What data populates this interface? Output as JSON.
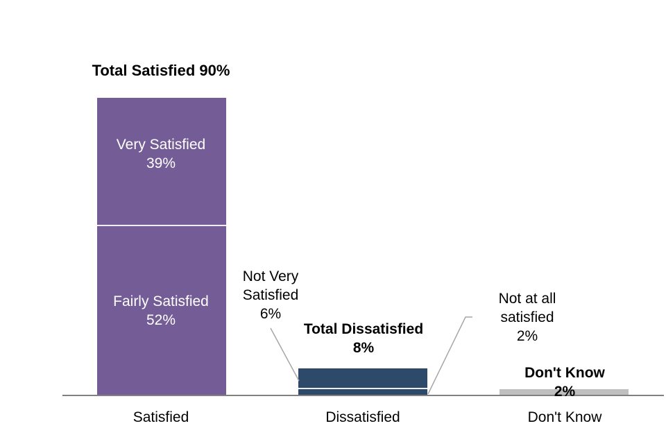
{
  "chart_data": {
    "type": "bar",
    "stacked": true,
    "title": "",
    "categories": [
      "Satisfied",
      "Dissatisfied",
      "Don't Know"
    ],
    "unit": "%",
    "ylim": [
      0,
      100
    ],
    "grid": false,
    "legend": "none (labels drawn on/near bars)",
    "groups": [
      {
        "category": "Satisfied",
        "color": "#745D97",
        "total": 90,
        "total_annotation": "Total Satisfied 90%",
        "segments": [
          {
            "name": "Very Satisfied",
            "value": 39
          },
          {
            "name": "Fairly Satisfied",
            "value": 52
          }
        ]
      },
      {
        "category": "Dissatisfied",
        "color": "#2E4A6B",
        "total": 8,
        "total_annotation": "Total Dissatisfied 8%",
        "segments": [
          {
            "name": "Not Very Satisfied",
            "value": 6
          },
          {
            "name": "Not at all satisfied",
            "value": 2
          }
        ]
      },
      {
        "category": "Don't Know",
        "color": "#BFBFBF",
        "total": 2,
        "total_annotation": "Don't Know 2%",
        "segments": [
          {
            "name": "Don't Know",
            "value": 2
          }
        ]
      }
    ]
  },
  "annotations": {
    "total_satisfied": "Total Satisfied 90%",
    "very_satisfied": "Very Satisfied\n39%",
    "fairly_satisfied": "Fairly Satisfied\n52%",
    "not_very_satisfied": "Not Very\nSatisfied\n6%",
    "total_dissatisfied": "Total Dissatisfied\n8%",
    "not_at_all_satisfied": "Not at all\nsatisfied\n2%",
    "dont_know": "Don't Know 2%"
  },
  "x_axis": {
    "labels": [
      "Satisfied",
      "Dissatisfied",
      "Don't Know"
    ]
  },
  "colors": {
    "satisfied_bar": "#745D97",
    "dissatisfied_bar": "#2E4A6B",
    "dont_know_bar": "#BFBFBF",
    "segment_divider": "#EDEDF2",
    "axis_line": "#808080",
    "callout_line": "#A6A6A6",
    "label_text": "#000000",
    "bar_inner_text": "#FFFFFF"
  }
}
